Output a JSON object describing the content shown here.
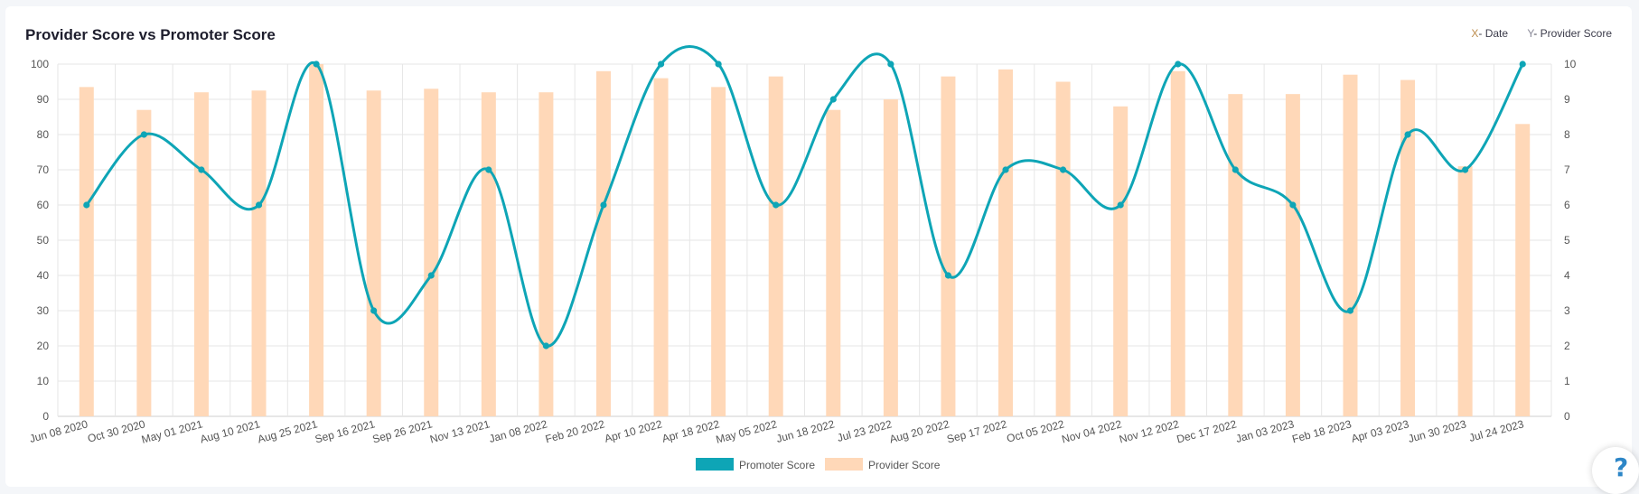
{
  "card": {
    "title": "Provider Score vs Promoter Score",
    "axis_legend": [
      {
        "key": "X",
        "label": "- Date"
      },
      {
        "key": "Y",
        "label": "- Provider Score"
      }
    ]
  },
  "help": {
    "glyph": "?",
    "icon": "help-question-icon"
  },
  "chart_data": {
    "type": "bar+line",
    "categories": [
      "Jun 08 2020",
      "Oct 30 2020",
      "May 01 2021",
      "Aug 10 2021",
      "Aug 25 2021",
      "Sep 16 2021",
      "Sep 26 2021",
      "Nov 13 2021",
      "Jan 08 2022",
      "Feb 20 2022",
      "Apr 10 2022",
      "Apr 18 2022",
      "May 05 2022",
      "Jun 18 2022",
      "Jul 23 2022",
      "Aug 20 2022",
      "Sep 17 2022",
      "Oct 05 2022",
      "Nov 04 2022",
      "Nov 12 2022",
      "Dec 17 2022",
      "Jan 03 2023",
      "Feb 18 2023",
      "Apr 03 2023",
      "Jun 30 2023",
      "Jul 24 2023"
    ],
    "left_axis": {
      "min": 0,
      "max": 100,
      "ticks": [
        0,
        10,
        20,
        30,
        40,
        50,
        60,
        70,
        80,
        90,
        100
      ]
    },
    "right_axis": {
      "min": 0,
      "max": 10,
      "ticks": [
        0,
        1,
        2,
        3,
        4,
        5,
        6,
        7,
        8,
        9,
        10
      ]
    },
    "series": [
      {
        "name": "Promoter Score",
        "type": "line",
        "axis": "left",
        "color": "#0ea5b6",
        "values": [
          60,
          80,
          70,
          60,
          100,
          30,
          40,
          70,
          20,
          60,
          100,
          100,
          60,
          90,
          100,
          40,
          70,
          70,
          60,
          100,
          70,
          60,
          30,
          80,
          70,
          100
        ]
      },
      {
        "name": "Provider Score",
        "type": "bar",
        "axis": "right",
        "color": "#ffd8b8",
        "values": [
          9.35,
          8.7,
          9.2,
          9.25,
          10,
          9.25,
          9.3,
          9.2,
          9.2,
          9.8,
          9.6,
          9.35,
          9.65,
          8.7,
          9.0,
          9.65,
          9.85,
          9.5,
          8.8,
          9.8,
          9.15,
          9.15,
          9.7,
          9.55,
          7.1,
          8.3
        ]
      }
    ],
    "grid": true,
    "legend_position": "bottom"
  }
}
